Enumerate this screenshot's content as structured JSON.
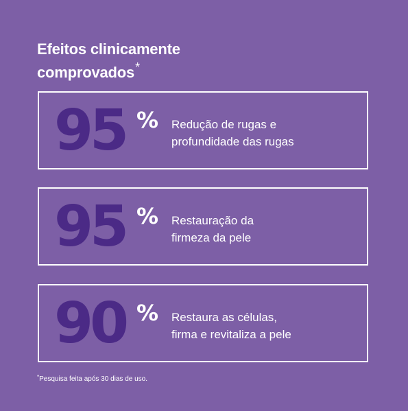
{
  "headline": {
    "line1": "Efeitos clinicamente",
    "line2": "comprovados",
    "asterisk": "*"
  },
  "stats": [
    {
      "value": "95",
      "unit": "%",
      "description_line1": "Redução de rugas e",
      "description_line2": "profundidade das rugas"
    },
    {
      "value": "95",
      "unit": "%",
      "description_line1": "Restauração da",
      "description_line2": "firmeza da pele"
    },
    {
      "value": "90",
      "unit": "%",
      "description_line1": "Restaura as células,",
      "description_line2": "firma e revitaliza a pele"
    }
  ],
  "footnote": {
    "asterisk": "*",
    "text": "Pesquisa feita após 30 dias de uso."
  },
  "colors": {
    "background": "#7d5fa6",
    "number": "#4b2a86",
    "text": "#ffffff",
    "border": "#ffffff"
  }
}
